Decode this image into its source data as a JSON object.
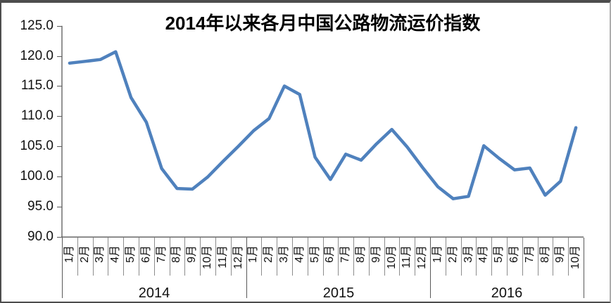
{
  "title": "2014年以来各月中国公路物流运价指数",
  "colors": {
    "line": "#4F81BD",
    "axis": "#595959",
    "separator": "#8c8c8c",
    "frame_dark": "#4d4d4d",
    "frame_light": "#adadad",
    "background": "#ffffff"
  },
  "chart_data": {
    "type": "line",
    "title": "2014年以来各月中国公路物流运价指数",
    "xlabel": "",
    "ylabel": "",
    "ylim": [
      90,
      125
    ],
    "ytick_step": 5,
    "ytick_labels": [
      "125.0",
      "120.0",
      "115.0",
      "110.0",
      "105.0",
      "100.0",
      "95.0",
      "90.0"
    ],
    "grid": "off",
    "legend": "none",
    "categories": [
      "1月",
      "2月",
      "3月",
      "4月",
      "5月",
      "6月",
      "7月",
      "8月",
      "9月",
      "10月",
      "11月",
      "12月",
      "1月",
      "2月",
      "3月",
      "4月",
      "5月",
      "6月",
      "7月",
      "8月",
      "9月",
      "10月",
      "11月",
      "12月",
      "1月",
      "2月",
      "3月",
      "4月",
      "5月",
      "6月",
      "7月",
      "8月",
      "9月",
      "10月"
    ],
    "year_groups": [
      {
        "label": "2014",
        "months": 12
      },
      {
        "label": "2015",
        "months": 12
      },
      {
        "label": "2016",
        "months": 10
      }
    ],
    "series": [
      {
        "name": "中国公路物流运价指数",
        "values": [
          118.8,
          119.1,
          119.4,
          120.7,
          113.1,
          109.0,
          101.3,
          98.0,
          97.9,
          99.9,
          102.5,
          105.0,
          107.6,
          109.6,
          115.0,
          113.6,
          103.2,
          99.5,
          103.7,
          102.7,
          105.4,
          107.8,
          104.9,
          101.5,
          98.3,
          96.3,
          96.7,
          105.1,
          103.0,
          101.1,
          101.4,
          96.9,
          99.2,
          108.1
        ]
      }
    ]
  }
}
